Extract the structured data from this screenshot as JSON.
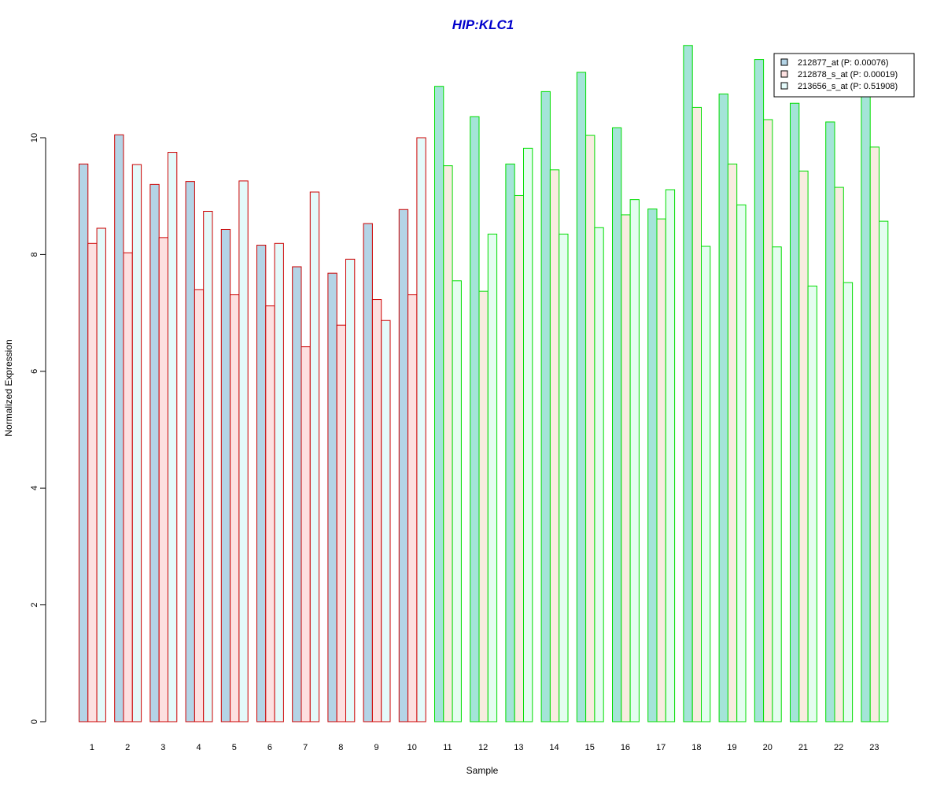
{
  "chart_data": {
    "type": "bar",
    "title": "HIP:KLC1",
    "xlabel": "Sample",
    "ylabel": "Normalized Expression",
    "categories": [
      "1",
      "2",
      "3",
      "4",
      "5",
      "6",
      "7",
      "8",
      "9",
      "10",
      "11",
      "12",
      "13",
      "14",
      "15",
      "16",
      "17",
      "18",
      "19",
      "20",
      "21",
      "22",
      "23"
    ],
    "ylim": [
      0,
      11.6
    ],
    "yticks": [
      0,
      2,
      4,
      6,
      8,
      10
    ],
    "grid": false,
    "legend_position": "top-right",
    "group_a_count": 10,
    "group_border_colors": [
      "#cc0000",
      "#00dd00"
    ],
    "series": [
      {
        "name": "212877_at (P: 0.00076)",
        "fill_colors": [
          "#b4d4e6",
          "#a4e4d8"
        ],
        "legend_fill": "#b4d4e6",
        "values": [
          9.55,
          10.05,
          9.2,
          9.25,
          8.43,
          8.16,
          7.79,
          7.68,
          8.53,
          8.77,
          10.88,
          10.36,
          9.55,
          10.79,
          11.12,
          10.17,
          8.78,
          11.58,
          10.75,
          11.34,
          10.59,
          10.27,
          10.8
        ]
      },
      {
        "name": "212878_s_at (P: 0.00019)",
        "fill_colors": [
          "#fde0e0",
          "#f8ece0"
        ],
        "legend_fill": "#fde0e0",
        "values": [
          8.19,
          8.03,
          8.29,
          7.4,
          7.31,
          7.12,
          6.42,
          6.79,
          7.23,
          7.31,
          9.52,
          7.37,
          9.01,
          9.45,
          10.04,
          8.68,
          8.61,
          10.52,
          9.55,
          10.31,
          9.43,
          9.15,
          9.84
        ]
      },
      {
        "name": "213656_s_at (P: 0.51908)",
        "fill_colors": [
          "#e4fafa",
          "#e4fdf0"
        ],
        "legend_fill": "#e4fafa",
        "values": [
          8.45,
          9.54,
          9.75,
          8.74,
          9.26,
          8.19,
          9.07,
          7.92,
          6.87,
          10.0,
          7.55,
          8.35,
          9.82,
          8.35,
          8.46,
          8.94,
          9.11,
          8.14,
          8.85,
          8.13,
          7.46,
          7.52,
          8.57
        ]
      }
    ],
    "title_color": "#0000cc"
  }
}
